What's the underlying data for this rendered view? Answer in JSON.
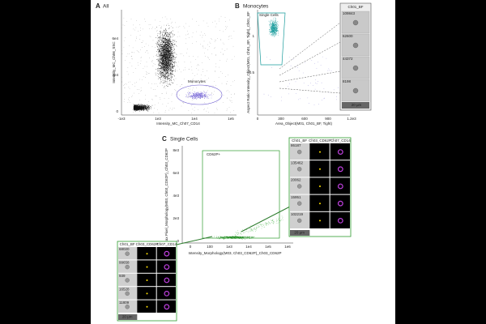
{
  "panel_a": {
    "label": "A",
    "title": "All",
    "x_label": "Intensity_MC_Ch07_CD14",
    "y_label": "Intensity_MC_Ch06_SSC",
    "x_ticks": [
      "-1e3",
      "1e3",
      "1e4",
      "1e5"
    ],
    "y_ticks": [
      "6e4",
      "3e4",
      "0"
    ],
    "gate": "Monocytes"
  },
  "panel_b": {
    "label": "B",
    "title": "Monocytes",
    "x_label": "Area_Object(M01, Ch01_BF, Tight)",
    "y_label": "Aspect Ratio Intensity_Object(M01, Ch01_BF, Tight)_Ch01_BF",
    "x_ticks": [
      "0",
      "300",
      "600",
      "900",
      "1.2e3"
    ],
    "y_ticks": [
      "1",
      "0.5"
    ],
    "gate": "Single Cells",
    "gallery": {
      "header": "Ch01_BF",
      "ids": [
        "109843",
        "62600",
        "44372",
        "8198"
      ],
      "scale": "20 µm"
    }
  },
  "panel_c": {
    "label": "C",
    "title": "Single Cells",
    "x_label": "Intensity_Morphology(M03, Ch03_CD62P)_Ch03_CD62P",
    "y_label": "Max Pixel_Morphology(M03, Ch03_CD62P)_Ch03_CD62P",
    "x_ticks": [
      "0",
      "100",
      "1e3",
      "1e4",
      "1e5",
      "1e6"
    ],
    "y_ticks": [
      "8e3",
      "6e3",
      "4e3",
      "2e3",
      "0"
    ],
    "gate": "CD62P+",
    "galleries": [
      {
        "headers": [
          "Ch01_BF",
          "Ch03_CD62P",
          "Ch07_CD14"
        ],
        "ids": [
          "86187",
          "135462",
          "20062",
          "15951",
          "102219"
        ],
        "scale": "20 µm"
      },
      {
        "headers": [
          "Ch01_BF",
          "Ch03_CD62P",
          "Ch07_CD14"
        ],
        "ids": [
          "68020",
          "99658",
          "939",
          "16528",
          "11809"
        ],
        "scale": "20 µm"
      }
    ]
  }
}
